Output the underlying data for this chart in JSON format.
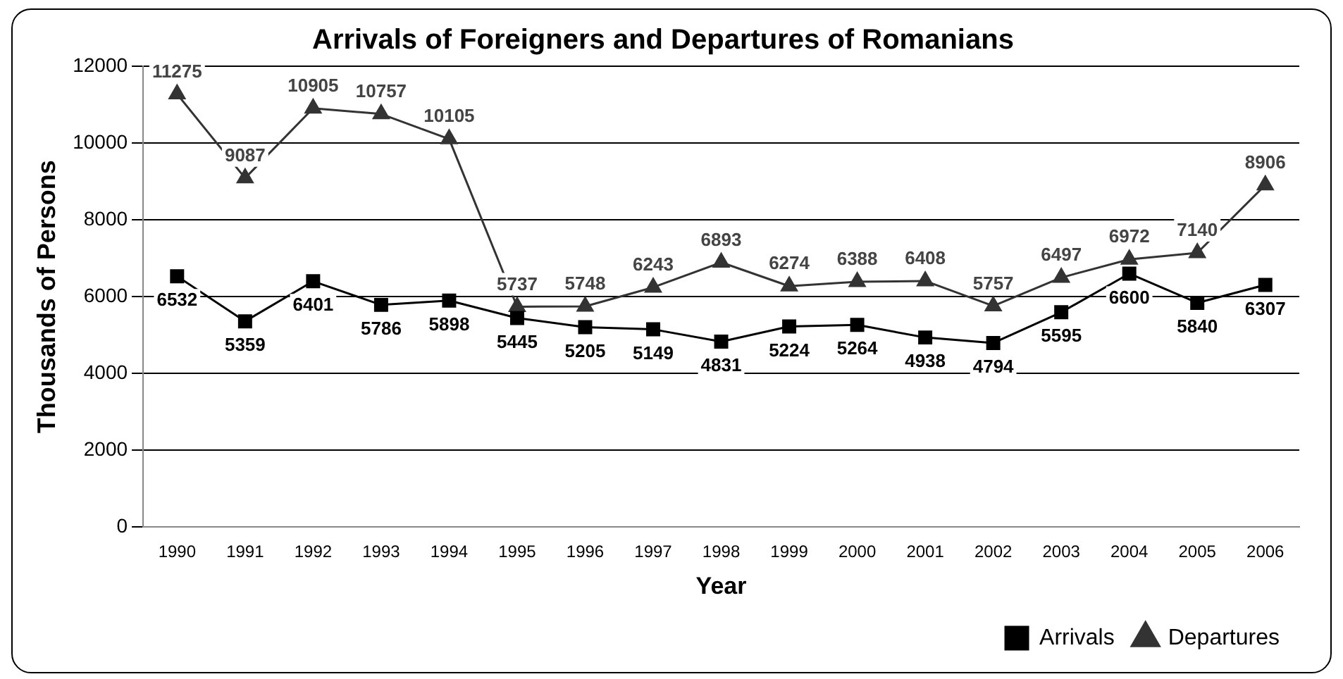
{
  "chart_data": {
    "type": "line",
    "title": "Arrivals of Foreigners and Departures of Romanians",
    "xlabel": "Year",
    "ylabel": "Thousands of Persons",
    "categories": [
      "1990",
      "1991",
      "1992",
      "1993",
      "1994",
      "1995",
      "1996",
      "1997",
      "1998",
      "1999",
      "2000",
      "2001",
      "2002",
      "2003",
      "2004",
      "2005",
      "2006"
    ],
    "series": [
      {
        "name": "Arrivals",
        "color": "#000000",
        "marker": "square",
        "values": [
          6532,
          5359,
          6401,
          5786,
          5898,
          5445,
          5205,
          5149,
          4831,
          5224,
          5264,
          4938,
          4794,
          5595,
          6600,
          5840,
          6307
        ]
      },
      {
        "name": "Departures",
        "color": "#333333",
        "marker": "triangle",
        "values": [
          11275,
          9087,
          10905,
          10757,
          10105,
          5737,
          5748,
          6243,
          6893,
          6274,
          6388,
          6408,
          5757,
          6497,
          6972,
          7140,
          8906
        ]
      }
    ],
    "ylim": [
      0,
      12000
    ],
    "yticks": [
      0,
      2000,
      4000,
      6000,
      8000,
      10000,
      12000
    ],
    "grid": "y",
    "legend": "bottom right",
    "data_labels": true,
    "line_style": "solid"
  }
}
